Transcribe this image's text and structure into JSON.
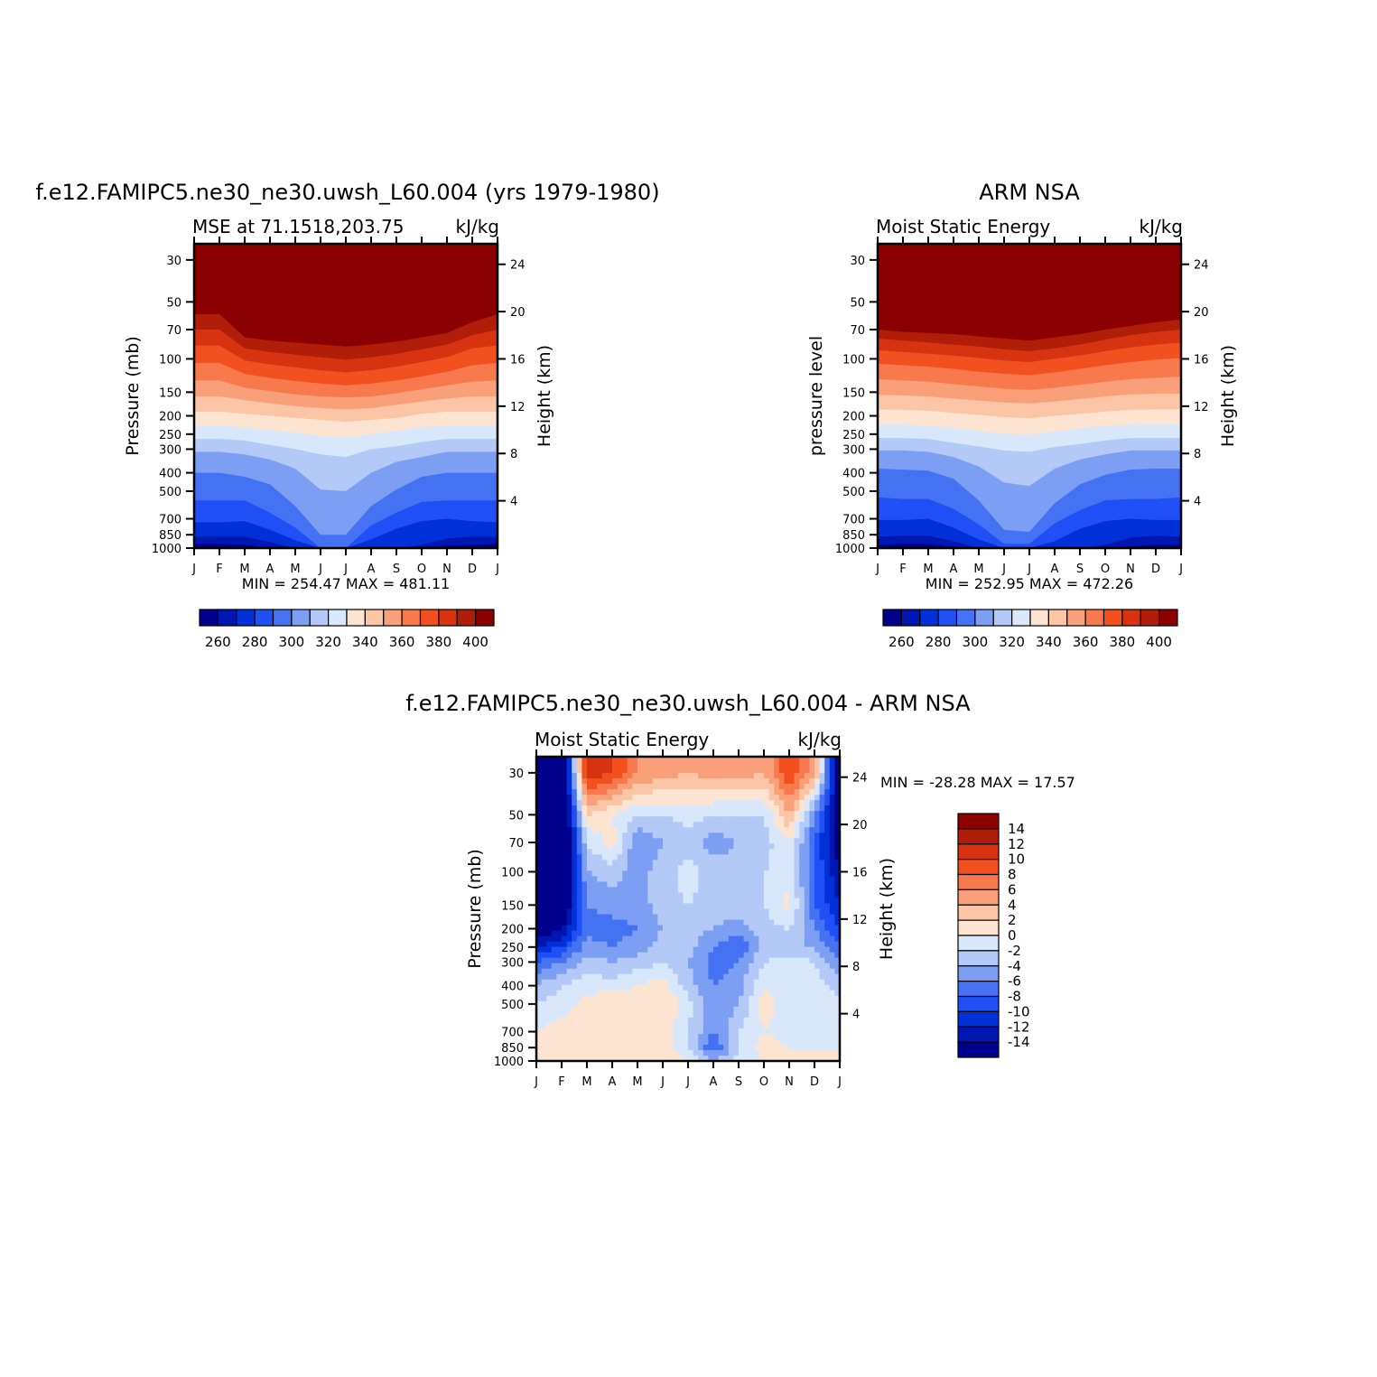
{
  "chart_data": [
    {
      "type": "heatmap",
      "title": "f.e12.FAMIPC5.ne30_ne30.uwsh_L60.004 (yrs 1979-1980)",
      "left_subtitle": "MSE at 71.1518,203.75",
      "right_subtitle": "kJ/kg",
      "ylabel": "Pressure (mb)",
      "ylabel_right": "Height (km)",
      "x_ticks": [
        "J",
        "F",
        "M",
        "A",
        "M",
        "J",
        "J",
        "A",
        "S",
        "O",
        "N",
        "D",
        "J"
      ],
      "y_ticks": [
        "30",
        "50",
        "70",
        "100",
        "150",
        "200",
        "250",
        "300",
        "400",
        "500",
        "700",
        "850",
        "1000"
      ],
      "y_ticks_right": [
        "24",
        "20",
        "16",
        "12",
        "8",
        "4"
      ],
      "minmax_label": "MIN = 254.47 MAX = 481.11",
      "colorbar_ticks": [
        "260",
        "280",
        "300",
        "320",
        "340",
        "360",
        "380",
        "400"
      ],
      "colorbar_orientation": "horizontal",
      "levels": [
        250,
        260,
        270,
        280,
        290,
        300,
        310,
        320,
        330,
        340,
        350,
        360,
        370,
        380,
        390,
        400,
        410
      ],
      "contour_pressure_mb": {
        "260": [
          950,
          950,
          960,
          1000,
          1000,
          1000,
          1000,
          1000,
          1000,
          1000,
          970,
          960,
          950
        ],
        "270": [
          870,
          870,
          870,
          930,
          1000,
          1000,
          1000,
          1000,
          1000,
          960,
          890,
          870,
          870
        ],
        "280": [
          730,
          730,
          720,
          800,
          910,
          1000,
          1000,
          900,
          790,
          720,
          700,
          720,
          730
        ],
        "290": [
          560,
          560,
          560,
          650,
          780,
          1000,
          1000,
          760,
          650,
          570,
          560,
          560,
          560
        ],
        "300": [
          400,
          400,
          420,
          460,
          600,
          850,
          850,
          600,
          490,
          420,
          400,
          400,
          400
        ],
        "310": [
          310,
          310,
          320,
          340,
          380,
          490,
          500,
          400,
          350,
          330,
          310,
          310,
          310
        ],
        "320": [
          265,
          265,
          270,
          285,
          300,
          320,
          330,
          300,
          290,
          275,
          265,
          265,
          265
        ],
        "330": [
          225,
          225,
          230,
          238,
          245,
          255,
          260,
          250,
          240,
          230,
          225,
          225,
          225
        ],
        "340": [
          190,
          190,
          195,
          200,
          205,
          210,
          215,
          210,
          205,
          195,
          190,
          190,
          190
        ],
        "350": [
          158,
          158,
          165,
          172,
          178,
          182,
          185,
          182,
          175,
          168,
          162,
          158,
          158
        ],
        "360": [
          130,
          130,
          142,
          148,
          154,
          158,
          160,
          158,
          152,
          145,
          138,
          132,
          130
        ],
        "370": [
          105,
          105,
          120,
          126,
          131,
          135,
          138,
          135,
          130,
          124,
          117,
          108,
          105
        ],
        "380": [
          85,
          85,
          102,
          107,
          111,
          115,
          118,
          115,
          110,
          104,
          98,
          88,
          85
        ],
        "390": [
          70,
          70,
          88,
          92,
          95,
          98,
          101,
          98,
          94,
          89,
          84,
          75,
          70
        ],
        "400": [
          58,
          58,
          77,
          80,
          82,
          84,
          86,
          84,
          81,
          77,
          73,
          64,
          58
        ],
        "410": [
          48,
          48,
          67,
          70,
          71,
          74,
          76,
          74,
          71,
          67,
          63,
          55,
          48
        ]
      }
    },
    {
      "type": "heatmap",
      "title": "ARM NSA",
      "left_subtitle": "Moist Static Energy",
      "right_subtitle": "kJ/kg",
      "ylabel": "pressure level",
      "ylabel_right": "Height (km)",
      "x_ticks": [
        "J",
        "F",
        "M",
        "A",
        "M",
        "J",
        "J",
        "A",
        "S",
        "O",
        "N",
        "D",
        "J"
      ],
      "y_ticks": [
        "30",
        "50",
        "70",
        "100",
        "150",
        "200",
        "250",
        "300",
        "400",
        "500",
        "700",
        "850",
        "1000"
      ],
      "y_ticks_right": [
        "24",
        "20",
        "16",
        "12",
        "8",
        "4"
      ],
      "minmax_label": "MIN = 252.95 MAX = 472.26",
      "colorbar_ticks": [
        "260",
        "280",
        "300",
        "320",
        "340",
        "360",
        "380",
        "400"
      ],
      "colorbar_orientation": "horizontal",
      "levels": [
        250,
        260,
        270,
        280,
        290,
        300,
        310,
        320,
        330,
        340,
        350,
        360,
        370,
        380,
        390,
        400,
        410
      ],
      "contour_pressure_mb": {
        "260": [
          960,
          950,
          950,
          990,
          1000,
          1000,
          1000,
          1000,
          1000,
          1000,
          980,
          960,
          960
        ],
        "270": [
          870,
          860,
          860,
          920,
          1000,
          1000,
          1000,
          1000,
          1000,
          960,
          880,
          860,
          870
        ],
        "280": [
          710,
          710,
          700,
          780,
          900,
          1000,
          1000,
          920,
          790,
          720,
          700,
          710,
          710
        ],
        "290": [
          540,
          550,
          550,
          620,
          750,
          950,
          950,
          740,
          630,
          560,
          550,
          550,
          540
        ],
        "300": [
          380,
          385,
          390,
          430,
          560,
          800,
          820,
          580,
          460,
          410,
          385,
          380,
          380
        ],
        "310": [
          305,
          305,
          310,
          330,
          370,
          450,
          470,
          380,
          340,
          320,
          305,
          305,
          305
        ],
        "320": [
          262,
          262,
          265,
          278,
          290,
          305,
          310,
          292,
          282,
          270,
          262,
          262,
          262
        ],
        "330": [
          222,
          222,
          226,
          232,
          240,
          248,
          252,
          242,
          233,
          226,
          222,
          222,
          222
        ],
        "340": [
          185,
          186,
          188,
          193,
          198,
          203,
          206,
          200,
          195,
          190,
          186,
          185,
          185
        ],
        "350": [
          155,
          156,
          158,
          162,
          166,
          170,
          172,
          168,
          163,
          158,
          154,
          153,
          153
        ],
        "360": [
          128,
          130,
          132,
          136,
          140,
          144,
          146,
          142,
          137,
          132,
          128,
          126,
          124
        ],
        "370": [
          106,
          108,
          110,
          113,
          117,
          120,
          122,
          118,
          113,
          108,
          104,
          101,
          99
        ],
        "380": [
          90,
          92,
          94,
          96,
          99,
          102,
          104,
          100,
          96,
          91,
          87,
          84,
          82
        ],
        "390": [
          78,
          80,
          82,
          84,
          86,
          89,
          91,
          88,
          84,
          79,
          75,
          72,
          70
        ],
        "400": [
          70,
          72,
          73,
          74,
          76,
          78,
          80,
          77,
          74,
          70,
          67,
          64,
          62
        ],
        "410": [
          62,
          64,
          65,
          66,
          68,
          70,
          72,
          69,
          66,
          62,
          60,
          58,
          56
        ]
      }
    },
    {
      "type": "heatmap",
      "title": "f.e12.FAMIPC5.ne30_ne30.uwsh_L60.004 - ARM NSA",
      "left_subtitle": "Moist Static Energy",
      "right_subtitle": "kJ/kg",
      "ylabel": "Pressure (mb)",
      "ylabel_right": "Height (km)",
      "x_ticks": [
        "J",
        "F",
        "M",
        "A",
        "M",
        "J",
        "J",
        "A",
        "S",
        "O",
        "N",
        "D",
        "J"
      ],
      "y_ticks": [
        "30",
        "50",
        "70",
        "100",
        "150",
        "200",
        "250",
        "300",
        "400",
        "500",
        "700",
        "850",
        "1000"
      ],
      "y_ticks_right": [
        "24",
        "20",
        "16",
        "12",
        "8",
        "4"
      ],
      "minmax_label": "MIN = -28.28 MAX = 17.57",
      "colorbar_ticks": [
        "14",
        "12",
        "10",
        "8",
        "6",
        "4",
        "2",
        "0",
        "-2",
        "-4",
        "-6",
        "-8",
        "-10",
        "-12",
        "-14"
      ],
      "colorbar_orientation": "vertical",
      "levels": [
        -16,
        -14,
        -12,
        -10,
        -8,
        -6,
        -4,
        -2,
        0,
        2,
        4,
        6,
        8,
        10,
        12,
        14,
        16
      ],
      "profile_months": [
        "J",
        "F",
        "M",
        "A",
        "M",
        "J",
        "J",
        "A",
        "S",
        "O",
        "N",
        "D",
        "J"
      ],
      "profile_pressure_mb": [
        30,
        50,
        70,
        100,
        150,
        200,
        250,
        300,
        400,
        500,
        700,
        850,
        1000
      ],
      "profiles": [
        [
          -20,
          -20,
          -20,
          -20,
          -18,
          -16,
          -12,
          -8,
          -4,
          -2,
          0,
          1,
          1
        ],
        [
          -20,
          -20,
          -20,
          -20,
          -18,
          -14,
          -10,
          -6,
          -2,
          -1,
          1,
          2,
          1
        ],
        [
          12,
          2,
          -2,
          -4,
          -6,
          -7,
          -5,
          -3,
          -1,
          1,
          2,
          1,
          1
        ],
        [
          10,
          0,
          1,
          -3,
          -5,
          -7,
          -6,
          -4,
          -1,
          2,
          2,
          1,
          2
        ],
        [
          6,
          -2,
          -6,
          -5,
          -5,
          -6,
          -5,
          -3,
          0,
          2,
          1,
          1,
          2
        ],
        [
          5,
          -2,
          -4,
          -3,
          -3,
          -4,
          -3,
          -2,
          1,
          2,
          1,
          1,
          2
        ],
        [
          4,
          -1,
          -3,
          -1,
          -2,
          -3,
          -3,
          -4,
          -3,
          -1,
          -2,
          -2,
          0
        ],
        [
          5,
          -2,
          -5,
          -3,
          -3,
          -4,
          -6,
          -7,
          -6,
          -6,
          -6,
          -8,
          -4
        ],
        [
          5,
          -2,
          -4,
          -3,
          -3,
          -5,
          -8,
          -6,
          -5,
          -4,
          -2,
          -2,
          -1
        ],
        [
          4,
          -2,
          -3,
          -2,
          -2,
          -3,
          -3,
          -2,
          0,
          1,
          0,
          1,
          0
        ],
        [
          10,
          4,
          0,
          -1,
          1,
          -2,
          -4,
          -1,
          -1,
          -1,
          -1,
          0,
          0
        ],
        [
          5,
          -6,
          -8,
          -8,
          -8,
          -6,
          -4,
          -2,
          -1,
          -1,
          -1,
          0,
          0
        ],
        [
          -18,
          -16,
          -16,
          -14,
          -12,
          -10,
          -8,
          -6,
          -3,
          -1,
          -1,
          0,
          0
        ]
      ]
    }
  ]
}
